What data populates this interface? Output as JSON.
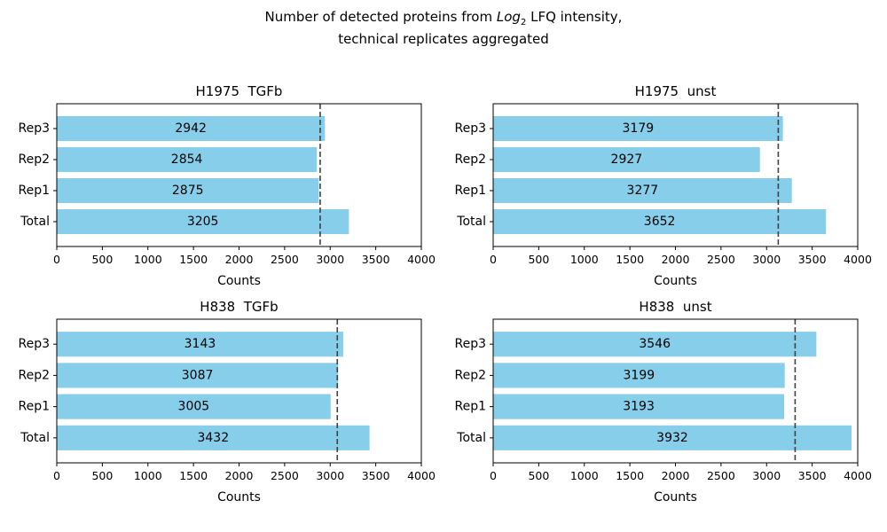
{
  "title_line1_pre": "Number of detected proteins from ",
  "title_math_base": "Log",
  "title_math_sub": "2",
  "title_line1_post": " LFQ intensity,",
  "title_line2": "technical replicates aggregated",
  "colors": {
    "bar": "#87ceeb",
    "mean_line": "#404040",
    "axis": "#000000",
    "background": "#ffffff"
  },
  "chart_data": [
    {
      "type": "bar",
      "orientation": "horizontal",
      "title": "H1975  TGFb",
      "xlabel": "Counts",
      "categories": [
        "Total",
        "Rep1",
        "Rep2",
        "Rep3"
      ],
      "values": [
        3205,
        2875,
        2854,
        2942
      ],
      "data_labels": [
        "3205",
        "2875",
        "2854",
        "2942"
      ],
      "mean_line": 2890,
      "xlim": [
        0,
        4000
      ],
      "xticks": [
        0,
        500,
        1000,
        1500,
        2000,
        2500,
        3000,
        3500,
        4000
      ],
      "grid": false
    },
    {
      "type": "bar",
      "orientation": "horizontal",
      "title": "H1975  unst",
      "xlabel": "Counts",
      "categories": [
        "Total",
        "Rep1",
        "Rep2",
        "Rep3"
      ],
      "values": [
        3652,
        3277,
        2927,
        3179
      ],
      "data_labels": [
        "3652",
        "3277",
        "2927",
        "3179"
      ],
      "mean_line": 3128,
      "xlim": [
        0,
        4000
      ],
      "xticks": [
        0,
        500,
        1000,
        1500,
        2000,
        2500,
        3000,
        3500,
        4000
      ],
      "grid": false
    },
    {
      "type": "bar",
      "orientation": "horizontal",
      "title": "H838  TGFb",
      "xlabel": "Counts",
      "categories": [
        "Total",
        "Rep1",
        "Rep2",
        "Rep3"
      ],
      "values": [
        3432,
        3005,
        3087,
        3143
      ],
      "data_labels": [
        "3432",
        "3005",
        "3087",
        "3143"
      ],
      "mean_line": 3078,
      "xlim": [
        0,
        4000
      ],
      "xticks": [
        0,
        500,
        1000,
        1500,
        2000,
        2500,
        3000,
        3500,
        4000
      ],
      "grid": false
    },
    {
      "type": "bar",
      "orientation": "horizontal",
      "title": "H838  unst",
      "xlabel": "Counts",
      "categories": [
        "Total",
        "Rep1",
        "Rep2",
        "Rep3"
      ],
      "values": [
        3932,
        3193,
        3199,
        3546
      ],
      "data_labels": [
        "3932",
        "3193",
        "3199",
        "3546"
      ],
      "mean_line": 3313,
      "xlim": [
        0,
        4000
      ],
      "xticks": [
        0,
        500,
        1000,
        1500,
        2000,
        2500,
        3000,
        3500,
        4000
      ],
      "grid": false
    }
  ]
}
